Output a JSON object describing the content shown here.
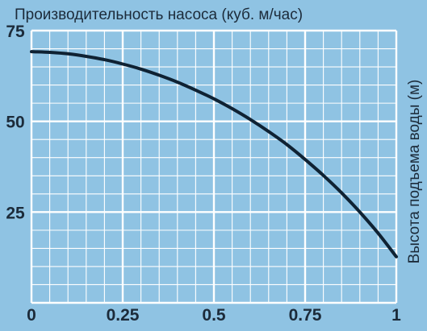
{
  "colors": {
    "background": "#8fc3e3",
    "grid": "#ffffff",
    "curve": "#0f2233",
    "text": "#1c2b3a"
  },
  "chart_data": {
    "type": "line",
    "title": "Производительность насоса (куб. м/час)",
    "xlabel": "",
    "ylabel": "Высота подъема воды (м)",
    "xlim": [
      0,
      1
    ],
    "ylim": [
      0,
      75
    ],
    "x_ticks": [
      0,
      0.25,
      0.5,
      0.75,
      1
    ],
    "x_tick_labels": [
      "0",
      "0.25",
      "0.5",
      "0.75",
      "1"
    ],
    "y_ticks": [
      25,
      50,
      75
    ],
    "y_tick_labels": [
      "25",
      "50",
      "75"
    ],
    "grid": true,
    "minor_grid_step_x": 0.05,
    "minor_grid_step_y": 5,
    "series": [
      {
        "x": [
          0,
          0.05,
          0.1,
          0.15,
          0.2,
          0.25,
          0.3,
          0.35,
          0.4,
          0.45,
          0.5,
          0.55,
          0.6,
          0.65,
          0.7,
          0.75,
          0.8,
          0.85,
          0.9,
          0.95,
          1.0
        ],
        "values": [
          69.2,
          69.0,
          68.6,
          67.9,
          67.0,
          65.8,
          64.4,
          62.7,
          60.8,
          58.6,
          56.2,
          53.5,
          50.5,
          47.2,
          43.6,
          39.5,
          35.1,
          30.3,
          25.0,
          19.2,
          12.7
        ]
      }
    ]
  }
}
